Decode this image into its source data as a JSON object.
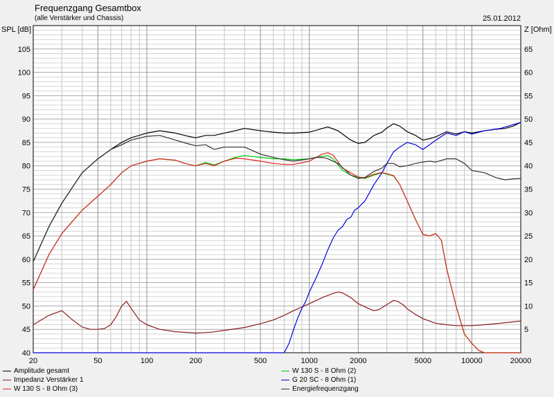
{
  "header": {
    "title": "Frequenzgang Gesamtbox",
    "subtitle": "(alle Verstärker und Chassis)",
    "date": "25.01.2012"
  },
  "chart_data": {
    "type": "line",
    "title": "Frequenzgang Gesamtbox",
    "subtitle": "(alle Verstärker und Chassis)",
    "ylabel": "SPL [dB]",
    "ylabel_right": "Z [Ohm]",
    "xscale": "log",
    "xlim": [
      20,
      20000
    ],
    "ylim": [
      40,
      110
    ],
    "ylim_right": [
      0,
      70
    ],
    "grid": true,
    "x_ticks": [
      20,
      50,
      100,
      200,
      500,
      1000,
      2000,
      5000,
      10000,
      20000
    ],
    "x_tick_labels": [
      "20",
      "50",
      "100",
      "200",
      "500",
      "1000",
      "2000",
      "5000",
      "10000",
      "20000"
    ],
    "y_ticks": [
      40,
      45,
      50,
      55,
      60,
      65,
      70,
      75,
      80,
      85,
      90,
      95,
      100,
      105
    ],
    "y_tick_labels": [
      "40",
      "45",
      "50",
      "55",
      "60",
      "65",
      "70",
      "75",
      "80",
      "85",
      "90",
      "95",
      "100",
      "105"
    ],
    "y_ticks_right": [
      5,
      10,
      15,
      20,
      25,
      30,
      35,
      40,
      45,
      50,
      55,
      60,
      65
    ],
    "y_tick_labels_right": [
      "5",
      "10",
      "15",
      "20",
      "25",
      "30",
      "35",
      "40",
      "45",
      "50",
      "55",
      "60",
      "65"
    ],
    "legend_position": "bottom",
    "series": [
      {
        "name": "Amplitude gesamt",
        "color": "#000000",
        "axis": "left",
        "x": [
          20,
          25,
          30,
          40,
          50,
          60,
          70,
          80,
          100,
          120,
          150,
          180,
          200,
          230,
          260,
          300,
          350,
          400,
          500,
          600,
          700,
          800,
          1000,
          1100,
          1200,
          1300,
          1500,
          1800,
          2000,
          2200,
          2500,
          2800,
          3000,
          3300,
          3600,
          4000,
          4500,
          5000,
          5500,
          6000,
          7000,
          8000,
          9000,
          10000,
          12000,
          14000,
          16000,
          18000,
          20000
        ],
        "y": [
          59.5,
          67,
          72,
          78.5,
          81.5,
          83.5,
          85,
          86,
          87,
          87.5,
          87,
          86.3,
          86,
          86.5,
          86.5,
          87,
          87.5,
          88,
          87.5,
          87.2,
          87,
          87,
          87.2,
          87.6,
          88,
          88.3,
          87.5,
          85.5,
          84.8,
          85,
          86.5,
          87.2,
          88.1,
          89,
          88.5,
          87.3,
          86.5,
          85.5,
          85.8,
          86.2,
          87.3,
          86.8,
          87.3,
          87.0,
          87.5,
          87.8,
          88.0,
          88.5,
          89.3
        ]
      },
      {
        "name": "W 130 S - 8 Ohm (2)",
        "color": "#00cc00",
        "axis": "left",
        "x": [
          20,
          25,
          30,
          40,
          50,
          60,
          70,
          80,
          100,
          120,
          150,
          180,
          200,
          230,
          260,
          300,
          350,
          400,
          500,
          600,
          700,
          800,
          1000,
          1100,
          1200,
          1300,
          1400,
          1600,
          1800,
          2000,
          2200,
          2500,
          2800,
          3000,
          3300,
          3600,
          4000,
          4500,
          5000,
          5500,
          6000,
          6500,
          7000,
          8000,
          9000,
          10000,
          11000,
          12000,
          15000,
          20000
        ],
        "y": [
          53.5,
          61,
          65.5,
          70.5,
          73.5,
          76,
          78.5,
          80,
          81,
          81.5,
          81.2,
          80.3,
          80,
          80.7,
          80.2,
          81,
          81.8,
          82.2,
          81.8,
          81.5,
          81.5,
          81.3,
          81.5,
          81.8,
          82.0,
          82.2,
          81.5,
          79,
          78,
          77.5,
          77.3,
          78,
          78.5,
          78.2,
          77.8,
          76,
          72.5,
          68.5,
          65.3,
          65.0,
          65.5,
          64,
          58,
          50,
          44,
          42,
          40.5,
          40,
          40,
          40
        ]
      },
      {
        "name": "Impedanz Verstärker 1",
        "color": "#8b1a1a",
        "axis": "right",
        "x": [
          20,
          25,
          30,
          35,
          40,
          45,
          50,
          55,
          60,
          65,
          70,
          75,
          80,
          90,
          100,
          120,
          150,
          200,
          250,
          300,
          400,
          500,
          600,
          700,
          800,
          1000,
          1200,
          1400,
          1500,
          1600,
          1800,
          2000,
          2300,
          2500,
          2700,
          3000,
          3300,
          3500,
          3800,
          4000,
          4500,
          5000,
          6000,
          7000,
          8000,
          10000,
          12000,
          15000,
          20000
        ],
        "y": [
          6,
          8,
          9,
          7,
          5.5,
          5,
          5,
          5.2,
          6,
          7.8,
          10,
          11,
          9.5,
          7,
          6,
          5,
          4.5,
          4.2,
          4.4,
          4.8,
          5.4,
          6.2,
          7,
          8,
          9,
          10.5,
          11.8,
          12.7,
          13,
          12.8,
          11.8,
          10.5,
          9.5,
          9,
          9.3,
          10.3,
          11.2,
          11,
          10.2,
          9.4,
          8.2,
          7.3,
          6.3,
          6,
          5.8,
          5.8,
          6,
          6.3,
          6.8
        ]
      },
      {
        "name": "G 20 SC - 8 Ohm (1)",
        "color": "#0000dd",
        "axis": "left",
        "x": [
          20,
          700,
          750,
          800,
          850,
          900,
          950,
          1000,
          1100,
          1200,
          1300,
          1400,
          1500,
          1600,
          1700,
          1800,
          1900,
          2000,
          2200,
          2500,
          2800,
          3000,
          3300,
          3600,
          4000,
          4500,
          5000,
          5500,
          6000,
          7000,
          8000,
          9000,
          10000,
          12000,
          15000,
          20000
        ],
        "y": [
          40,
          40,
          42,
          45,
          47.5,
          49.5,
          51,
          53,
          56,
          59,
          62,
          64.5,
          66.2,
          67,
          68.5,
          69,
          70.5,
          71,
          72.5,
          76,
          78.5,
          80.5,
          83,
          84,
          85,
          84.5,
          83.5,
          84.5,
          85.5,
          87,
          86.5,
          87.3,
          86.8,
          87.5,
          88,
          89.3
        ]
      },
      {
        "name": "W 130 S - 8 Ohm (3)",
        "color": "#e02020",
        "axis": "left",
        "x": [
          20,
          25,
          30,
          40,
          50,
          60,
          70,
          80,
          100,
          120,
          150,
          180,
          200,
          230,
          260,
          300,
          350,
          400,
          500,
          600,
          700,
          800,
          1000,
          1100,
          1200,
          1300,
          1400,
          1600,
          1800,
          2000,
          2200,
          2500,
          2800,
          3000,
          3300,
          3600,
          4000,
          4500,
          5000,
          5500,
          6000,
          6500,
          7000,
          8000,
          9000,
          10000,
          11000,
          12000,
          15000,
          20000
        ],
        "y": [
          53.5,
          61,
          65.5,
          70.5,
          73.5,
          76,
          78.5,
          80,
          81,
          81.5,
          81.2,
          80.3,
          80,
          80.5,
          80,
          81,
          81.6,
          81.5,
          81,
          80.5,
          80.3,
          80.3,
          81,
          81.8,
          82.5,
          82.8,
          82.3,
          79.5,
          78.5,
          77.6,
          77.4,
          78.2,
          78.6,
          78.3,
          77.9,
          76,
          72.5,
          68.5,
          65.3,
          65.0,
          65.5,
          64,
          58,
          50,
          44,
          42,
          40.5,
          40,
          40,
          40
        ]
      },
      {
        "name": "Energiefrequenzgang",
        "color": "#303030",
        "axis": "left",
        "x": [
          20,
          25,
          30,
          40,
          50,
          60,
          70,
          80,
          100,
          120,
          150,
          180,
          200,
          230,
          260,
          300,
          350,
          400,
          500,
          600,
          700,
          800,
          1000,
          1100,
          1200,
          1300,
          1500,
          1800,
          2000,
          2200,
          2500,
          2800,
          3000,
          3300,
          3600,
          4000,
          4500,
          5000,
          5500,
          6000,
          7000,
          8000,
          9000,
          10000,
          12000,
          14000,
          16000,
          18000,
          20000
        ],
        "y": [
          59.5,
          67,
          72,
          78.5,
          81.5,
          83.5,
          84.5,
          85.5,
          86.3,
          86.5,
          85.5,
          84.7,
          84.3,
          84.5,
          83.5,
          84,
          84,
          84,
          82.5,
          81.8,
          81.3,
          81,
          81.5,
          81.8,
          81.8,
          81.5,
          80.5,
          78,
          77.3,
          77.5,
          78.8,
          79.5,
          80.5,
          80.5,
          79.8,
          80,
          80.5,
          80.8,
          81,
          80.8,
          81.5,
          81.5,
          80.5,
          79,
          78.5,
          77.5,
          77,
          77.2,
          77.3
        ]
      }
    ]
  }
}
